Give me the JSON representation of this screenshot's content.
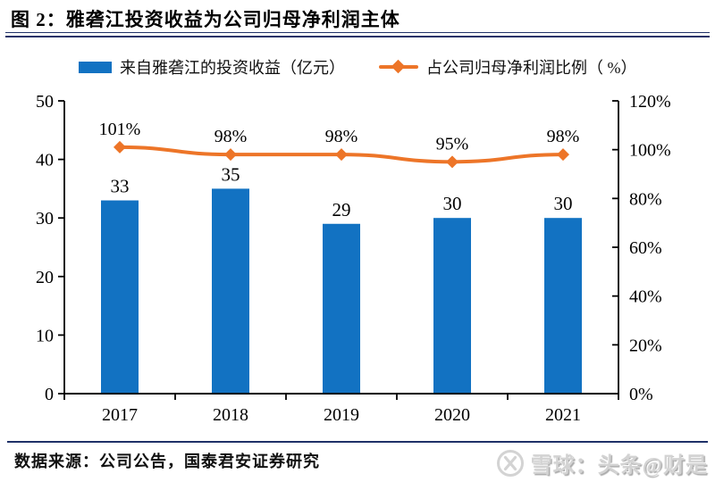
{
  "page": {
    "title": "图 2：雅砻江投资收益为公司归母净利润主体",
    "source": "数据来源：公司公告，国泰君安证券研究",
    "watermark": "雪球：头条@财是"
  },
  "colors": {
    "bar": "#1272C2",
    "line": "#ED7528",
    "rule": "#1F3168",
    "axis": "#000000",
    "watermark_gray": "#D3D3D3"
  },
  "chart_data": {
    "type": "bar",
    "title": "雅砻江投资收益为公司归母净利润主体",
    "categories": [
      "2017",
      "2018",
      "2019",
      "2020",
      "2021"
    ],
    "series": [
      {
        "name": "来自雅砻江的投资收益（亿元）",
        "type": "bar",
        "axis": "left",
        "values": [
          33,
          35,
          29,
          30,
          30
        ],
        "labels": [
          "33",
          "35",
          "29",
          "30",
          "30"
        ]
      },
      {
        "name": "占公司归母净利润比例（ %）",
        "type": "line",
        "axis": "right",
        "values": [
          101,
          98,
          98,
          95,
          98
        ],
        "labels": [
          "101%",
          "98%",
          "98%",
          "95%",
          "98%"
        ]
      }
    ],
    "left_axis": {
      "min": 0,
      "max": 50,
      "step": 10,
      "tick_labels": [
        "0",
        "10",
        "20",
        "30",
        "40",
        "50"
      ]
    },
    "right_axis": {
      "min": 0,
      "max": 120,
      "step": 20,
      "tick_labels": [
        "0%",
        "20%",
        "40%",
        "60%",
        "80%",
        "100%",
        "120%"
      ]
    },
    "grid": false,
    "legend_position": "top"
  }
}
